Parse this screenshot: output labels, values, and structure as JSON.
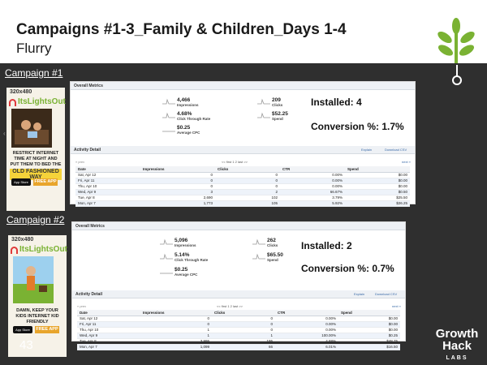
{
  "slide": {
    "title": "Campaigns #1-3_Family & Children_Days 1-4",
    "subtitle": "Flurry",
    "page_number": "43",
    "brand_top": "Growth",
    "brand_mid": "Hack",
    "brand_sub": "LABS"
  },
  "colors": {
    "leaf": "#7ab233",
    "background": "#2f2f2f",
    "accent_blue": "#3a6aa8"
  },
  "campaigns": [
    {
      "label": "Campaign #1",
      "ad": {
        "size": "320x480",
        "brand": "ItsLightsOut",
        "tagline": "RESTRICT INTERNET TIME AT NIGHT AND PUT THEM TO BED THE",
        "highlight": "OLD FASHIONED WAY",
        "store_badge": "App Store",
        "free_button": "FREE APP"
      },
      "panel": {
        "overall_title": "Overall Metrics",
        "impressions": {
          "value": "4,466",
          "label": "Impressions"
        },
        "clicks": {
          "value": "209",
          "label": "Clicks"
        },
        "ctr": {
          "value": "4.68%",
          "label": "Click Through Rate"
        },
        "spend": {
          "value": "$52.25",
          "label": "Spend"
        },
        "cpc": {
          "value": "$0.25",
          "label": "Average CPC"
        },
        "installed": "Installed: 4",
        "conversion": "Conversion %: 1.7%",
        "activity_title": "Activity Detail",
        "explain": "Explain",
        "download": "Download CSV",
        "prev": "« prev",
        "next": "next »",
        "pager": "<< first  1  2  last >>",
        "columns": [
          "Date",
          "Impressions",
          "Clicks",
          "CTR",
          "Spend"
        ],
        "rows": [
          [
            "Sat, Apr 12",
            "0",
            "0",
            "0.00%",
            "$0.00"
          ],
          [
            "Fri, Apr 11",
            "0",
            "0",
            "0.00%",
            "$0.00"
          ],
          [
            "Thu, Apr 10",
            "0",
            "0",
            "0.00%",
            "$0.00"
          ],
          [
            "Wed, Apr 9",
            "3",
            "2",
            "66.67%",
            "$0.50"
          ],
          [
            "Tue, Apr 8",
            "2,690",
            "102",
            "3.79%",
            "$25.50"
          ],
          [
            "Mon, Apr 7",
            "1,773",
            "105",
            "5.92%",
            "$26.25"
          ]
        ]
      }
    },
    {
      "label": "Campaign #2",
      "ad": {
        "size": "320x480",
        "brand": "ItsLightsOut",
        "tagline": "DAMN, KEEP YOUR KIDS INTERNET KID FRIENDLY",
        "highlight": "",
        "store_badge": "App Store",
        "free_button": "FREE APP"
      },
      "panel": {
        "overall_title": "Overall Metrics",
        "impressions": {
          "value": "5,096",
          "label": "Impressions"
        },
        "clicks": {
          "value": "262",
          "label": "Clicks"
        },
        "ctr": {
          "value": "5.14%",
          "label": "Click Through Rate"
        },
        "spend": {
          "value": "$65.50",
          "label": "Spend"
        },
        "cpc": {
          "value": "$0.25",
          "label": "Average CPC"
        },
        "installed": "Installed: 2",
        "conversion": "Conversion %: 0.7%",
        "activity_title": "Activity Detail",
        "explain": "Explain",
        "download": "Download CSV",
        "prev": "« prev",
        "next": "next »",
        "pager": "<< first  1  2  last >>",
        "columns": [
          "Date",
          "Impressions",
          "Clicks",
          "CTR",
          "Spend"
        ],
        "rows": [
          [
            "Sat, Apr 12",
            "0",
            "0",
            "0.00%",
            "$0.00"
          ],
          [
            "Fri, Apr 11",
            "0",
            "0",
            "0.00%",
            "$0.00"
          ],
          [
            "Thu, Apr 10",
            "1",
            "0",
            "0.00%",
            "$0.00"
          ],
          [
            "Wed, Apr 9",
            "1",
            "1",
            "100.00%",
            "$0.25"
          ],
          [
            "Tue, Apr 8",
            "3,995",
            "195",
            "4.88%",
            "$48.75"
          ],
          [
            "Mon, Apr 7",
            "1,099",
            "66",
            "6.01%",
            "$16.50"
          ]
        ]
      }
    }
  ]
}
